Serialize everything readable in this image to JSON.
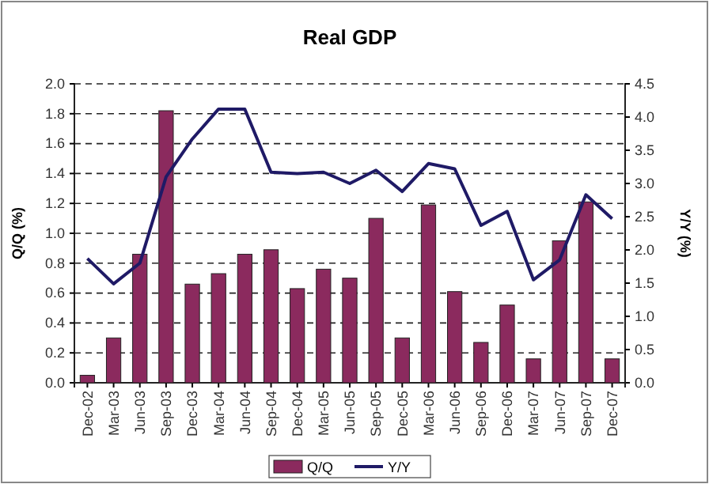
{
  "chart_data": {
    "type": "bar",
    "title": "Real GDP",
    "ylabel": "Q/Q (%)",
    "y2label": "Y/Y (%)",
    "categories": [
      "Dec-02",
      "Mar-03",
      "Jun-03",
      "Sep-03",
      "Dec-03",
      "Mar-04",
      "Jun-04",
      "Sep-04",
      "Dec-04",
      "Mar-05",
      "Jun-05",
      "Sep-05",
      "Dec-05",
      "Mar-06",
      "Jun-06",
      "Sep-06",
      "Dec-06",
      "Mar-07",
      "Jun-07",
      "Sep-07",
      "Dec-07"
    ],
    "series": [
      {
        "name": "Q/Q",
        "color": "#8b2a5e",
        "values": [
          0.05,
          0.3,
          0.86,
          1.82,
          0.66,
          0.73,
          0.86,
          0.89,
          0.63,
          0.76,
          0.7,
          1.1,
          0.3,
          1.19,
          0.61,
          0.27,
          0.52,
          0.16,
          0.95,
          1.21,
          0.16
        ]
      },
      {
        "name": "Y/Y",
        "type": "line",
        "axis": "y2",
        "color": "#1f1a66",
        "values": [
          1.87,
          1.49,
          1.8,
          3.1,
          3.67,
          4.12,
          4.12,
          3.17,
          3.15,
          3.17,
          3.0,
          3.2,
          2.88,
          3.3,
          3.22,
          2.37,
          2.58,
          1.55,
          1.85,
          2.83,
          2.47
        ]
      }
    ],
    "ylim": [
      0,
      2
    ],
    "yticks": [
      {
        "value": 0,
        "label": "0.0"
      },
      {
        "value": 0.2,
        "label": "0.2"
      },
      {
        "value": 0.4,
        "label": "0.4"
      },
      {
        "value": 0.6,
        "label": "0.6"
      },
      {
        "value": 0.8,
        "label": "0.8"
      },
      {
        "value": 1,
        "label": "1.0"
      },
      {
        "value": 1.2,
        "label": "1.2"
      },
      {
        "value": 1.4,
        "label": "1.4"
      },
      {
        "value": 1.6,
        "label": "1.6"
      },
      {
        "value": 1.8,
        "label": "1.8"
      },
      {
        "value": 2,
        "label": "2.0"
      }
    ],
    "y2lim": [
      0,
      4.5
    ],
    "y2ticks": [
      {
        "value": 0,
        "label": "0.0"
      },
      {
        "value": 0.5,
        "label": "0.5"
      },
      {
        "value": 1,
        "label": "1.0"
      },
      {
        "value": 1.5,
        "label": "1.5"
      },
      {
        "value": 2,
        "label": "2.0"
      },
      {
        "value": 2.5,
        "label": "2.5"
      },
      {
        "value": 3,
        "label": "3.0"
      },
      {
        "value": 3.5,
        "label": "3.5"
      },
      {
        "value": 4,
        "label": "4.0"
      },
      {
        "value": 4.5,
        "label": "4.5"
      }
    ],
    "grid": "y",
    "legend": "bottom",
    "line_style": "solid",
    "marker": "none"
  }
}
